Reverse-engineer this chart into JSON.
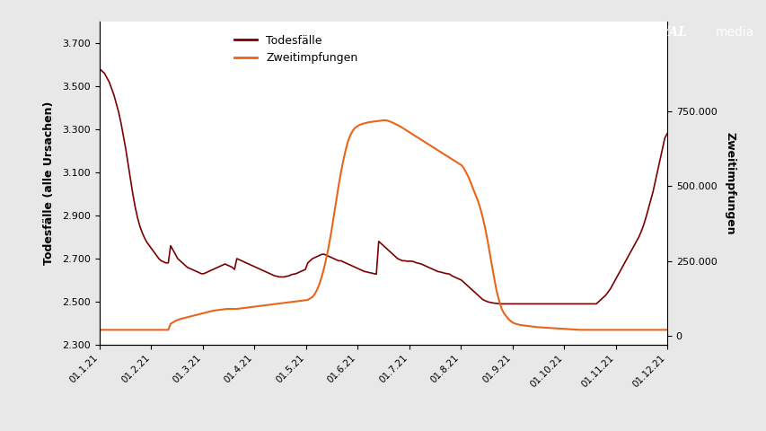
{
  "ylabel_left": "Todesfälle (alle Ursachen)",
  "ylabel_right": "Zweitimpfungen",
  "legend_labels": [
    "Todesfälle",
    "Zweitimpfungen"
  ],
  "color_deaths": "#7B0000",
  "color_vacc": "#E8651A",
  "ylim_left": [
    2300,
    3800
  ],
  "ylim_right": [
    -30000,
    1050000
  ],
  "yticks_left": [
    2300,
    2500,
    2700,
    2900,
    3100,
    3300,
    3500,
    3700
  ],
  "ytick_labels_left": [
    "2.300",
    "2.500",
    "2.700",
    "2.900",
    "3.100",
    "3.300",
    "3.500",
    "3.700"
  ],
  "yticks_right": [
    0,
    250000,
    500000,
    750000
  ],
  "ytick_labels_right": [
    "0",
    "250.000",
    "500.000",
    "750.000"
  ],
  "xtick_labels": [
    "01.1.21",
    "01.2.21",
    "01.3.21",
    "01.4.21",
    "01.5.21",
    "01.6.21",
    "01.7.21",
    "01.8.21",
    "01.9.21",
    "01.10.21",
    "01.11.21",
    "01.12.21"
  ],
  "background_color": "#e8e8e8",
  "deaths_data": [
    3580,
    3570,
    3560,
    3540,
    3520,
    3490,
    3460,
    3420,
    3380,
    3330,
    3270,
    3210,
    3140,
    3070,
    3000,
    2940,
    2890,
    2850,
    2820,
    2795,
    2775,
    2760,
    2745,
    2730,
    2715,
    2700,
    2690,
    2685,
    2680,
    2680,
    2760,
    2740,
    2720,
    2700,
    2690,
    2680,
    2670,
    2660,
    2655,
    2650,
    2645,
    2640,
    2635,
    2630,
    2630,
    2635,
    2640,
    2645,
    2650,
    2655,
    2660,
    2665,
    2670,
    2675,
    2670,
    2665,
    2660,
    2650,
    2700,
    2695,
    2690,
    2685,
    2680,
    2675,
    2670,
    2665,
    2660,
    2655,
    2650,
    2645,
    2640,
    2635,
    2630,
    2625,
    2620,
    2618,
    2615,
    2615,
    2615,
    2618,
    2620,
    2625,
    2628,
    2630,
    2635,
    2640,
    2645,
    2650,
    2680,
    2690,
    2700,
    2705,
    2710,
    2715,
    2720,
    2720,
    2715,
    2710,
    2705,
    2700,
    2695,
    2690,
    2690,
    2685,
    2680,
    2675,
    2670,
    2665,
    2660,
    2655,
    2650,
    2645,
    2640,
    2638,
    2635,
    2633,
    2630,
    2628,
    2780,
    2770,
    2760,
    2750,
    2740,
    2730,
    2720,
    2710,
    2700,
    2695,
    2690,
    2690,
    2688,
    2688,
    2688,
    2685,
    2680,
    2678,
    2675,
    2670,
    2665,
    2660,
    2655,
    2650,
    2645,
    2640,
    2638,
    2635,
    2632,
    2630,
    2628,
    2620,
    2615,
    2610,
    2605,
    2600,
    2590,
    2580,
    2570,
    2560,
    2550,
    2540,
    2530,
    2520,
    2510,
    2505,
    2500,
    2497,
    2495,
    2493,
    2492,
    2491,
    2490,
    2490,
    2490,
    2490,
    2490,
    2490,
    2490,
    2490,
    2490,
    2490,
    2490,
    2490,
    2490,
    2490,
    2490,
    2490,
    2490,
    2490,
    2490,
    2490,
    2490,
    2490,
    2490,
    2490,
    2490,
    2490,
    2490,
    2490,
    2490,
    2490,
    2490,
    2490,
    2490,
    2490,
    2490,
    2490,
    2490,
    2490,
    2490,
    2490,
    2490,
    2500,
    2510,
    2520,
    2530,
    2545,
    2560,
    2580,
    2600,
    2620,
    2640,
    2660,
    2680,
    2700,
    2720,
    2740,
    2760,
    2780,
    2800,
    2825,
    2855,
    2890,
    2930,
    2970,
    3010,
    3060,
    3110,
    3160,
    3210,
    3260,
    3280
  ],
  "vacc_data": [
    20000,
    20000,
    20000,
    20000,
    20000,
    20000,
    20000,
    20000,
    20000,
    20000,
    20000,
    20000,
    20000,
    20000,
    20000,
    20000,
    20000,
    20000,
    20000,
    20000,
    20000,
    20000,
    20000,
    20000,
    20000,
    20000,
    20000,
    20000,
    20000,
    20000,
    40000,
    45000,
    50000,
    53000,
    56000,
    58000,
    60000,
    62000,
    64000,
    66000,
    68000,
    70000,
    72000,
    74000,
    76000,
    78000,
    80000,
    82000,
    84000,
    85000,
    86000,
    87000,
    88000,
    89000,
    90000,
    90000,
    90000,
    90000,
    90000,
    91000,
    92000,
    93000,
    94000,
    95000,
    96000,
    97000,
    98000,
    99000,
    100000,
    101000,
    102000,
    103000,
    104000,
    105000,
    106000,
    107000,
    108000,
    109000,
    110000,
    111000,
    112000,
    113000,
    114000,
    115000,
    116000,
    117000,
    118000,
    119000,
    120000,
    125000,
    130000,
    140000,
    155000,
    175000,
    200000,
    230000,
    265000,
    305000,
    350000,
    400000,
    450000,
    500000,
    545000,
    585000,
    620000,
    650000,
    670000,
    685000,
    695000,
    700000,
    705000,
    708000,
    710000,
    712000,
    714000,
    715000,
    716000,
    717000,
    718000,
    719000,
    720000,
    720000,
    718000,
    715000,
    712000,
    708000,
    704000,
    700000,
    695000,
    690000,
    685000,
    680000,
    675000,
    670000,
    665000,
    660000,
    655000,
    650000,
    645000,
    640000,
    635000,
    630000,
    625000,
    620000,
    615000,
    610000,
    605000,
    600000,
    595000,
    590000,
    585000,
    580000,
    575000,
    570000,
    560000,
    545000,
    530000,
    510000,
    490000,
    470000,
    450000,
    425000,
    395000,
    360000,
    320000,
    275000,
    230000,
    185000,
    145000,
    115000,
    90000,
    75000,
    65000,
    55000,
    48000,
    43000,
    40000,
    38000,
    36000,
    35000,
    34000,
    33000,
    32000,
    31000,
    30000,
    29000,
    28500,
    28000,
    27500,
    27000,
    26500,
    26000,
    25500,
    25000,
    24500,
    24000,
    23500,
    23000,
    22500,
    22000,
    21500,
    21000,
    20500,
    20000,
    20000,
    20000,
    20000,
    20000,
    20000,
    20000,
    20000,
    20000,
    20000,
    20000,
    20000,
    20000,
    20000,
    20000,
    20000,
    20000,
    20000,
    20000,
    20000,
    20000,
    20000,
    20000,
    20000,
    20000,
    20000,
    20000,
    20000,
    20000,
    20000,
    20000,
    20000,
    20000,
    20000,
    20000,
    20000,
    20000,
    20000
  ]
}
